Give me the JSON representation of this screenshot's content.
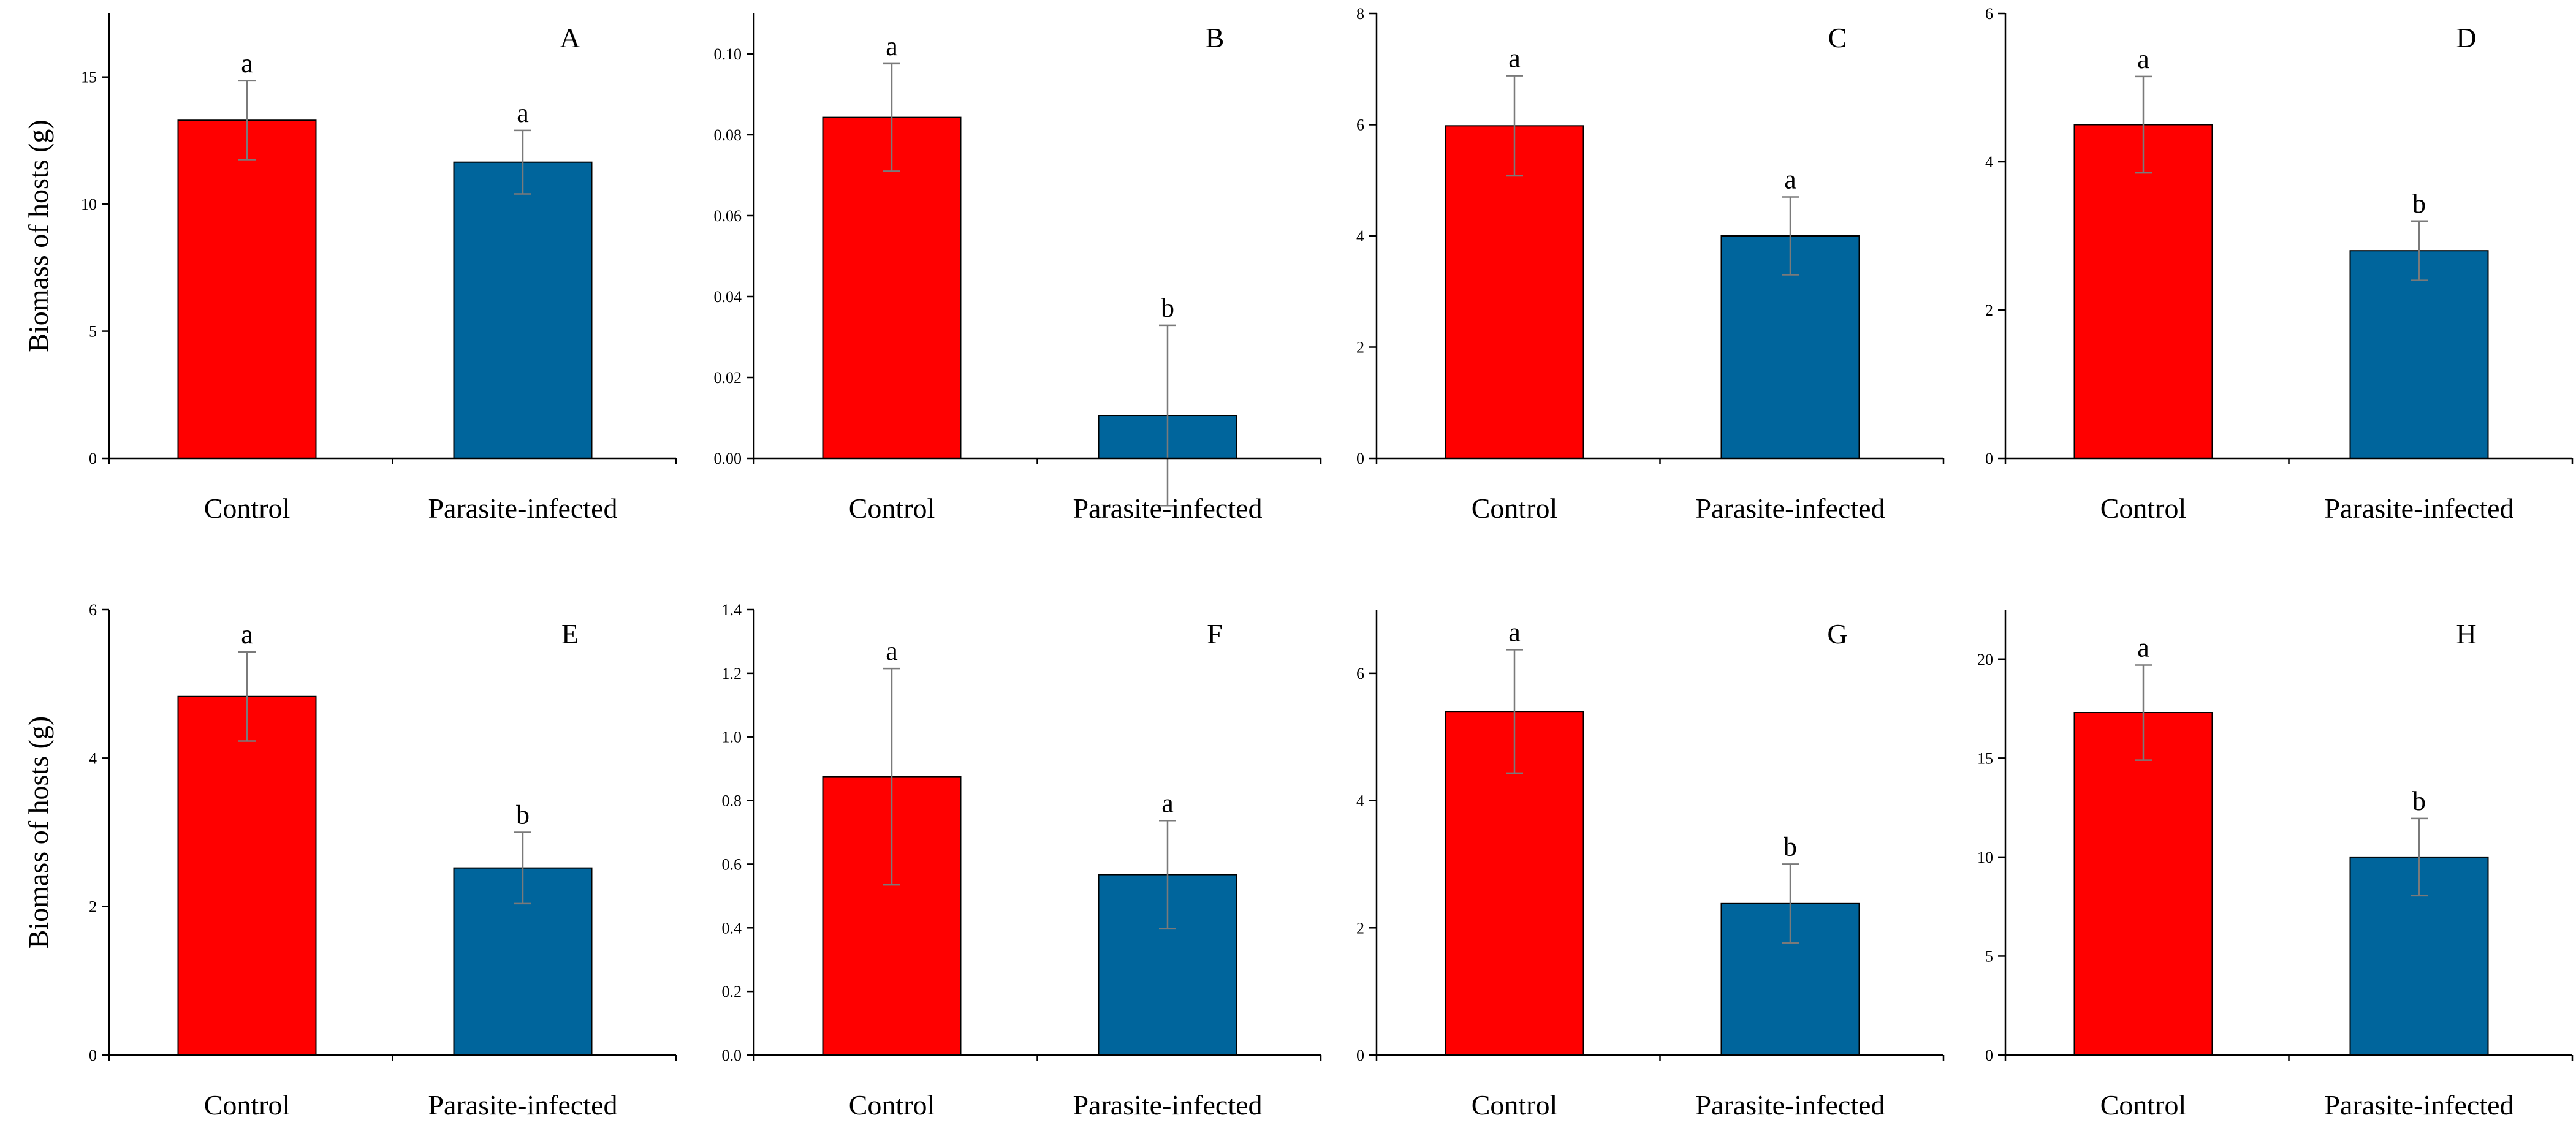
{
  "figure": {
    "y_axis_title": "Biomass of hosts (g)",
    "colors": {
      "control": "#ff0000",
      "infected": "#00659c",
      "error_bar": "#7a7a7a",
      "axis": "#000000"
    }
  },
  "chart_data": [
    {
      "type": "bar",
      "panel": "A",
      "categories": [
        "Control",
        "Parasite-infected"
      ],
      "values": [
        13.3,
        11.65
      ],
      "errors": [
        1.55,
        1.25
      ],
      "significance": [
        "a",
        "a"
      ],
      "ylim": [
        0,
        17.5
      ],
      "yticks": [
        0,
        5,
        10,
        15
      ],
      "ytick_labels": [
        "0",
        "5",
        "10",
        "15"
      ],
      "ylabel": "Biomass of hosts (g)"
    },
    {
      "type": "bar",
      "panel": "B",
      "categories": [
        "Control",
        "Parasite-infected"
      ],
      "values": [
        0.0843,
        0.0106
      ],
      "errors": [
        0.0133,
        0.0223
      ],
      "significance": [
        "a",
        "b"
      ],
      "ylim": [
        0,
        0.11
      ],
      "yticks": [
        0,
        0.02,
        0.04,
        0.06,
        0.08,
        0.1
      ],
      "ytick_labels": [
        "0.00",
        "0.02",
        "0.04",
        "0.06",
        "0.08",
        "0.10"
      ],
      "ylabel": ""
    },
    {
      "type": "bar",
      "panel": "C",
      "categories": [
        "Control",
        "Parasite-infected"
      ],
      "values": [
        5.98,
        4.0
      ],
      "errors": [
        0.9,
        0.7
      ],
      "significance": [
        "a",
        "a"
      ],
      "ylim": [
        0,
        8
      ],
      "yticks": [
        0,
        2,
        4,
        6,
        8
      ],
      "ytick_labels": [
        "0",
        "2",
        "4",
        "6",
        "8"
      ],
      "ylabel": ""
    },
    {
      "type": "bar",
      "panel": "D",
      "categories": [
        "Control",
        "Parasite-infected"
      ],
      "values": [
        4.5,
        2.8
      ],
      "errors": [
        0.65,
        0.4
      ],
      "significance": [
        "a",
        "b"
      ],
      "ylim": [
        0,
        6
      ],
      "yticks": [
        0,
        2,
        4,
        6
      ],
      "ytick_labels": [
        "0",
        "2",
        "4",
        "6"
      ],
      "ylabel": ""
    },
    {
      "type": "bar",
      "panel": "E",
      "categories": [
        "Control",
        "Parasite-infected"
      ],
      "values": [
        4.83,
        2.52
      ],
      "errors": [
        0.6,
        0.48
      ],
      "significance": [
        "a",
        "b"
      ],
      "ylim": [
        0,
        6
      ],
      "yticks": [
        0,
        2,
        4,
        6
      ],
      "ytick_labels": [
        "0",
        "2",
        "4",
        "6"
      ],
      "ylabel": "Biomass of hosts (g)"
    },
    {
      "type": "bar",
      "panel": "F",
      "categories": [
        "Control",
        "Parasite-infected"
      ],
      "values": [
        0.875,
        0.567
      ],
      "errors": [
        0.34,
        0.17
      ],
      "significance": [
        "a",
        "a"
      ],
      "ylim": [
        0,
        1.4
      ],
      "yticks": [
        0,
        0.2,
        0.4,
        0.6,
        0.8,
        1.0,
        1.2,
        1.4
      ],
      "ytick_labels": [
        "0.0",
        "0.2",
        "0.4",
        "0.6",
        "0.8",
        "1.0",
        "1.2",
        "1.4"
      ],
      "ylabel": ""
    },
    {
      "type": "bar",
      "panel": "G",
      "categories": [
        "Control",
        "Parasite-infected"
      ],
      "values": [
        5.4,
        2.38
      ],
      "errors": [
        0.97,
        0.62
      ],
      "significance": [
        "a",
        "b"
      ],
      "ylim": [
        0,
        7
      ],
      "yticks": [
        0,
        2,
        4,
        6
      ],
      "ytick_labels": [
        "0",
        "2",
        "4",
        "6"
      ],
      "ylabel": ""
    },
    {
      "type": "bar",
      "panel": "H",
      "categories": [
        "Control",
        "Parasite-infected"
      ],
      "values": [
        17.3,
        10.0
      ],
      "errors": [
        2.4,
        1.95
      ],
      "significance": [
        "a",
        "b"
      ],
      "ylim": [
        0,
        22.5
      ],
      "yticks": [
        0,
        5,
        10,
        15,
        20
      ],
      "ytick_labels": [
        "0",
        "5",
        "10",
        "15",
        "20"
      ],
      "ylabel": ""
    }
  ]
}
